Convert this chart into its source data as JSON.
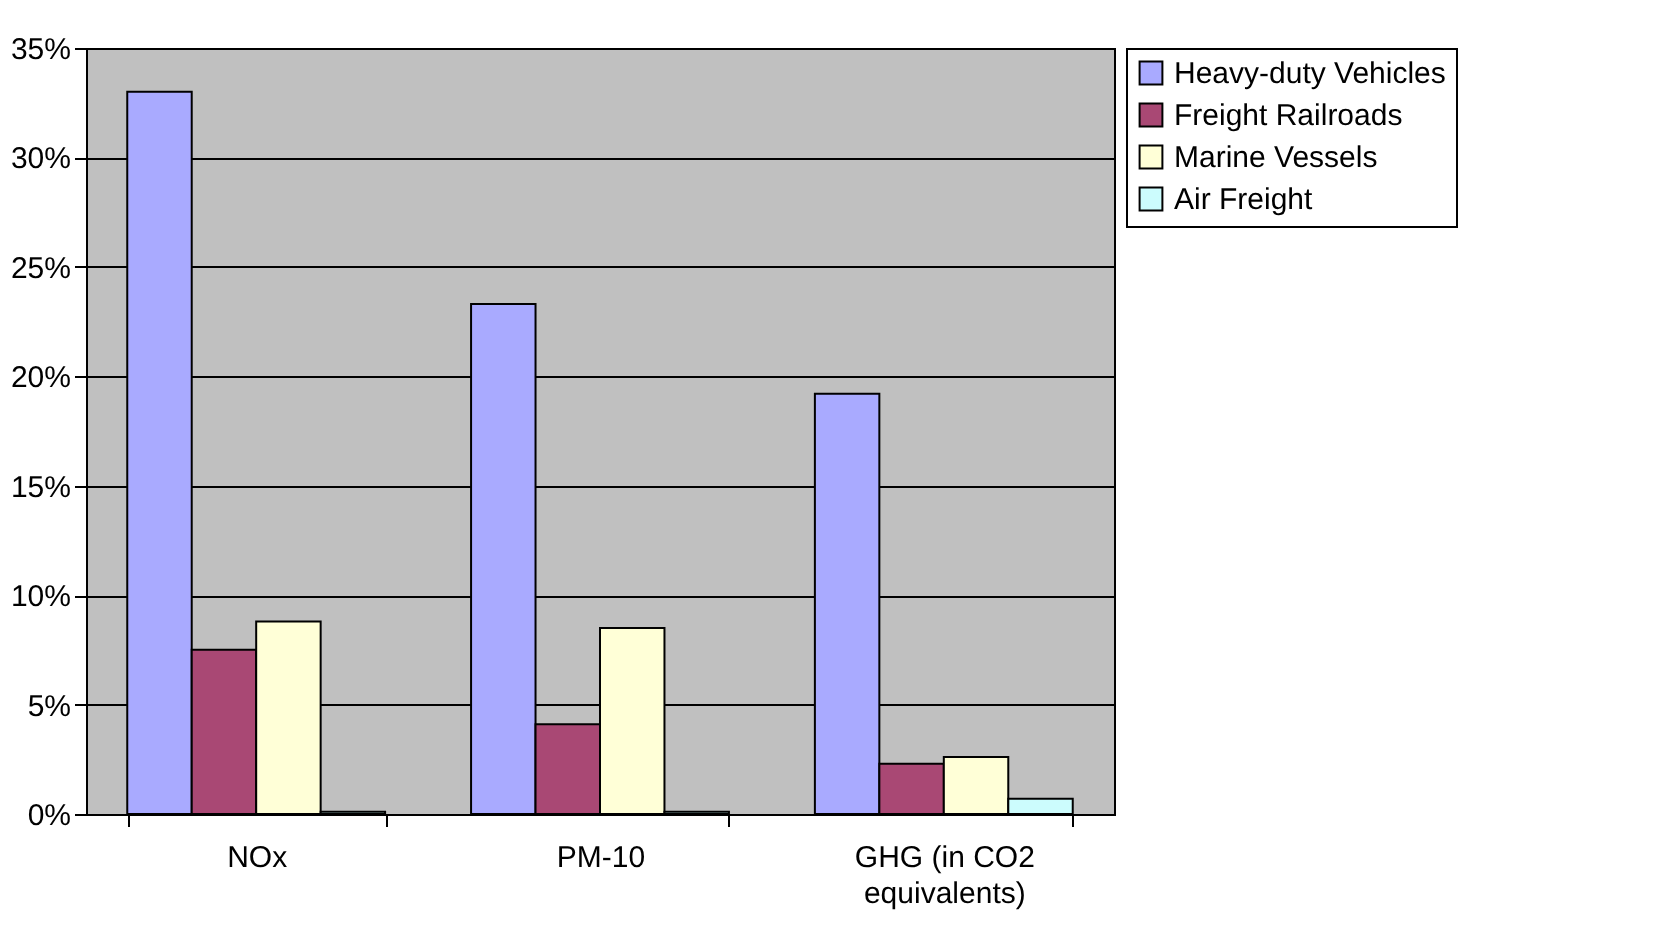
{
  "chart_data": {
    "type": "bar",
    "categories": [
      "NOx",
      "PM-10",
      "GHG (in CO2 equivalents)"
    ],
    "series": [
      {
        "name": "Heavy-duty Vehicles",
        "color": "#a9aaff",
        "values": [
          33.0,
          23.3,
          19.2
        ]
      },
      {
        "name": "Freight Railroads",
        "color": "#a94874",
        "values": [
          7.5,
          4.1,
          2.3
        ]
      },
      {
        "name": "Marine Vessels",
        "color": "#ffffd7",
        "values": [
          8.8,
          8.5,
          2.6
        ]
      },
      {
        "name": "Air Freight",
        "color": "#ccfcfd",
        "values": [
          0.1,
          0.1,
          0.7
        ]
      }
    ],
    "ylim": [
      0,
      35
    ],
    "yticks": [
      {
        "value": 0,
        "label": "0%"
      },
      {
        "value": 5,
        "label": "5%"
      },
      {
        "value": 10,
        "label": "10%"
      },
      {
        "value": 15,
        "label": "15%"
      },
      {
        "value": 20,
        "label": "20%"
      },
      {
        "value": 25,
        "label": "25%"
      },
      {
        "value": 30,
        "label": "30%"
      },
      {
        "value": 35,
        "label": "35%"
      }
    ],
    "grid": "y",
    "legend": "right"
  }
}
